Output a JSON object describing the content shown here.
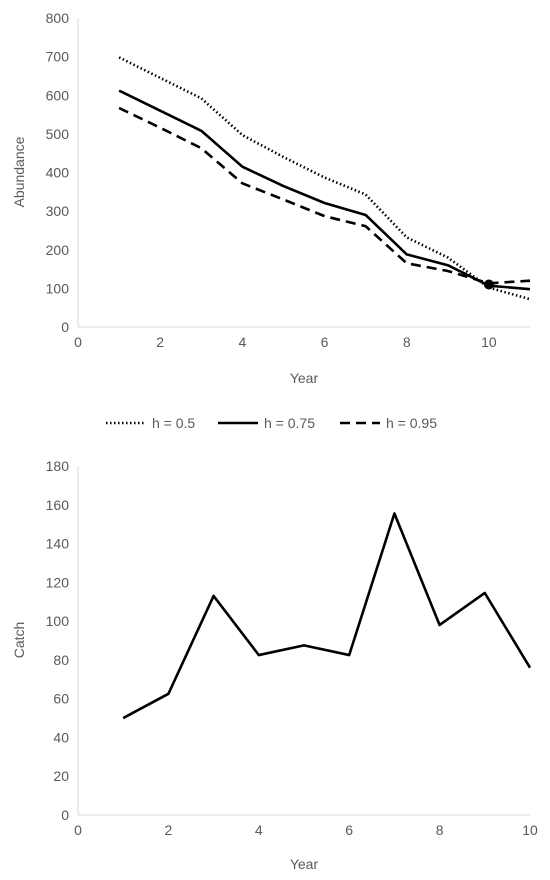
{
  "chart_data": [
    {
      "type": "line",
      "title": "",
      "xlabel": "Year",
      "ylabel": "Abundance",
      "xlim": [
        0,
        11
      ],
      "ylim": [
        0,
        800
      ],
      "x_ticks": [
        "0",
        "2",
        "4",
        "6",
        "8",
        "10"
      ],
      "y_ticks": [
        "0",
        "100",
        "200",
        "300",
        "400",
        "500",
        "600",
        "700",
        "800"
      ],
      "grid": false,
      "legend_position": "bottom",
      "x": [
        1,
        2,
        3,
        4,
        5,
        6,
        7,
        8,
        9,
        10,
        11
      ],
      "series": [
        {
          "name": "h = 0.5",
          "style": "dotted",
          "color": "#000000",
          "values": [
            698,
            645,
            592,
            497,
            440,
            387,
            343,
            232,
            180,
            102,
            72
          ]
        },
        {
          "name": "h = 0.75",
          "style": "solid",
          "color": "#000000",
          "values": [
            612,
            560,
            508,
            415,
            365,
            321,
            290,
            188,
            160,
            107,
            98
          ]
        },
        {
          "name": "h = 0.95",
          "style": "dashed",
          "color": "#000000",
          "values": [
            567,
            516,
            463,
            372,
            330,
            287,
            261,
            165,
            145,
            113,
            120
          ]
        }
      ],
      "markers": [
        {
          "x": 10,
          "y": 110
        }
      ]
    },
    {
      "type": "line",
      "title": "",
      "xlabel": "Year",
      "ylabel": "Catch",
      "xlim": [
        0,
        10
      ],
      "ylim": [
        0,
        180
      ],
      "x_ticks": [
        "0",
        "2",
        "4",
        "6",
        "8",
        "10"
      ],
      "y_ticks": [
        "0",
        "20",
        "40",
        "60",
        "80",
        "100",
        "120",
        "140",
        "160",
        "180"
      ],
      "grid": false,
      "x": [
        1,
        2,
        3,
        4,
        5,
        6,
        7,
        8,
        9,
        10
      ],
      "series": [
        {
          "style": "solid",
          "color": "#000000",
          "values": [
            50,
            62.5,
            113,
            82.5,
            87.5,
            82.5,
            155.5,
            98,
            114.5,
            76
          ]
        }
      ]
    }
  ],
  "colors": {
    "axis": "#d9d9d9",
    "text": "#595959",
    "series": "#000000"
  }
}
